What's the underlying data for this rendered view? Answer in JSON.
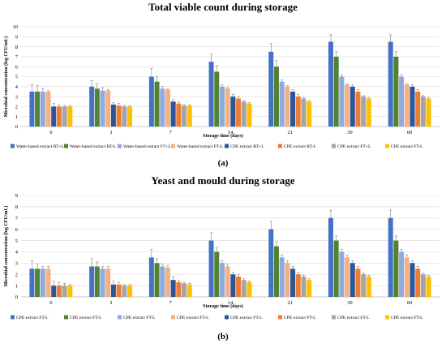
{
  "chart_data": [
    {
      "type": "bar",
      "panel_label": "(a)",
      "title": "Total viable count during storage",
      "xlabel": "Storage time (days)",
      "ylabel": "Microbial concentration (log CFU/mL)",
      "ylim": [
        0,
        10
      ],
      "yticks": [
        0,
        1,
        2,
        3,
        4,
        5,
        6,
        7,
        8,
        9,
        10
      ],
      "grid": true,
      "legend_position": "bottom",
      "categories": [
        "0",
        "3",
        "7",
        "14",
        "21",
        "30",
        "60"
      ],
      "series": [
        {
          "name": "Water-based extract RT+L",
          "color": "#4472c4",
          "values": [
            3.5,
            4.0,
            5.0,
            6.5,
            7.5,
            8.5,
            8.5
          ],
          "errors": [
            0.7,
            0.6,
            0.8,
            0.8,
            0.8,
            0.7,
            0.7
          ]
        },
        {
          "name": "Water-based extract RT-L",
          "color": "#548235",
          "values": [
            3.5,
            3.8,
            4.5,
            5.5,
            6.0,
            7.0,
            7.0
          ],
          "errors": [
            0.6,
            0.5,
            0.5,
            0.6,
            0.6,
            0.5,
            0.5
          ]
        },
        {
          "name": "Water-based extract FT+L",
          "color": "#8faadc",
          "values": [
            3.5,
            3.6,
            3.8,
            4.0,
            4.5,
            5.0,
            5.0
          ],
          "errors": [
            0.3,
            0.3,
            0.2,
            0.2,
            0.2,
            0.2,
            0.2
          ]
        },
        {
          "name": "Water-based extract FT-L",
          "color": "#f4b183",
          "values": [
            3.5,
            3.6,
            3.7,
            3.8,
            4.0,
            4.2,
            4.2
          ],
          "errors": [
            0.1,
            0.1,
            0.1,
            0.1,
            0.1,
            0.1,
            0.1
          ]
        },
        {
          "name": "CPE extract RT+L",
          "color": "#2e5597",
          "values": [
            2.0,
            2.2,
            2.5,
            3.0,
            3.5,
            4.0,
            4.0
          ],
          "errors": [
            0.3,
            0.2,
            0.2,
            0.2,
            0.2,
            0.2,
            0.2
          ]
        },
        {
          "name": "CPE extract RT-L",
          "color": "#ed7d31",
          "values": [
            2.0,
            2.1,
            2.3,
            2.8,
            3.0,
            3.5,
            3.5
          ],
          "errors": [
            0.2,
            0.2,
            0.2,
            0.2,
            0.2,
            0.2,
            0.2
          ]
        },
        {
          "name": "CPE extract FT+L",
          "color": "#a5a5a5",
          "values": [
            2.0,
            2.0,
            2.1,
            2.5,
            2.8,
            3.0,
            3.0
          ],
          "errors": [
            0.1,
            0.1,
            0.1,
            0.1,
            0.1,
            0.1,
            0.1
          ]
        },
        {
          "name": "CPE extract FT-L",
          "color": "#ffc000",
          "values": [
            2.0,
            2.0,
            2.1,
            2.3,
            2.5,
            2.8,
            2.8
          ],
          "errors": [
            0.1,
            0.1,
            0.1,
            0.1,
            0.1,
            0.1,
            0.1
          ]
        }
      ]
    },
    {
      "type": "bar",
      "panel_label": "(b)",
      "title": "Yeast and mould during storage",
      "xlabel": "Storage time (days)",
      "ylabel": "Microbial concentration (log CFU/mL)",
      "ylim": [
        0,
        9
      ],
      "yticks": [
        0,
        1,
        2,
        3,
        4,
        5,
        6,
        7,
        8,
        9
      ],
      "grid": true,
      "legend_position": "bottom",
      "categories": [
        "0",
        "3",
        "7",
        "14",
        "21",
        "30",
        "60"
      ],
      "series": [
        {
          "name": "CPE extract FT-L",
          "color": "#4472c4",
          "values": [
            2.5,
            2.7,
            3.5,
            5.0,
            6.0,
            7.0,
            7.0
          ],
          "errors": [
            0.7,
            0.7,
            0.7,
            0.7,
            0.7,
            0.7,
            0.7
          ]
        },
        {
          "name": "CPE extract FT-L",
          "color": "#548235",
          "values": [
            2.5,
            2.7,
            3.0,
            4.0,
            4.5,
            5.0,
            5.0
          ],
          "errors": [
            0.4,
            0.4,
            0.4,
            0.4,
            0.4,
            0.4,
            0.4
          ]
        },
        {
          "name": "CPE extract FT-L",
          "color": "#8faadc",
          "values": [
            2.5,
            2.5,
            2.7,
            3.0,
            3.5,
            4.0,
            4.0
          ],
          "errors": [
            0.2,
            0.2,
            0.2,
            0.2,
            0.2,
            0.2,
            0.2
          ]
        },
        {
          "name": "CPE extract FT-L",
          "color": "#f4b183",
          "values": [
            2.5,
            2.5,
            2.6,
            2.7,
            3.0,
            3.5,
            3.5
          ],
          "errors": [
            0.2,
            0.2,
            0.2,
            0.2,
            0.2,
            0.2,
            0.2
          ]
        },
        {
          "name": "CPE extract FT-L",
          "color": "#2e5597",
          "values": [
            1.0,
            1.1,
            1.5,
            2.0,
            2.5,
            3.0,
            3.0
          ],
          "errors": [
            0.4,
            0.3,
            0.3,
            0.2,
            0.2,
            0.2,
            0.2
          ]
        },
        {
          "name": "CPE extract FT-L",
          "color": "#ed7d31",
          "values": [
            1.0,
            1.1,
            1.3,
            1.8,
            2.0,
            2.5,
            2.5
          ],
          "errors": [
            0.3,
            0.2,
            0.2,
            0.2,
            0.2,
            0.2,
            0.2
          ]
        },
        {
          "name": "CPE extract FT-L",
          "color": "#a5a5a5",
          "values": [
            1.0,
            1.0,
            1.2,
            1.5,
            1.8,
            2.0,
            2.0
          ],
          "errors": [
            0.2,
            0.1,
            0.1,
            0.1,
            0.1,
            0.1,
            0.1
          ]
        },
        {
          "name": "CPE extract FT-L",
          "color": "#ffc000",
          "values": [
            1.0,
            1.0,
            1.1,
            1.3,
            1.5,
            1.8,
            1.8
          ],
          "errors": [
            0.1,
            0.1,
            0.1,
            0.1,
            0.1,
            0.1,
            0.1
          ]
        }
      ]
    }
  ]
}
